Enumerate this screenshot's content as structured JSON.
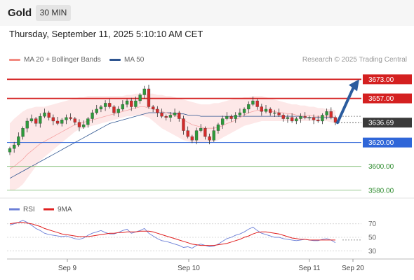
{
  "header": {
    "symbol": "Gold",
    "timeframe": "30 MIN"
  },
  "timestamp": "Thursday, September 11, 2025 5:10:10 AM CET",
  "legend": {
    "ma20": {
      "label": "MA 20 + Bollinger Bands",
      "color": "#f28b82"
    },
    "ma50": {
      "label": "MA 50",
      "color": "#2e5590"
    }
  },
  "credit": "Research © 2025 Trading Central",
  "rsi_legend": {
    "rsi": {
      "label": "RSI",
      "color": "#6b7fd7"
    },
    "ma9": {
      "label": "9MA",
      "color": "#e02020"
    }
  },
  "chart_data": {
    "type": "candlestick",
    "x_ticks": [
      "Sep 9",
      "Sep 10",
      "Sep 11",
      "Sep 20"
    ],
    "ylim": [
      3574,
      3682
    ],
    "current_price": {
      "value": 3636.69,
      "label": "3636.69"
    },
    "levels": [
      {
        "value": 3673.0,
        "label": "3673.00",
        "kind": "resistance"
      },
      {
        "value": 3657.0,
        "label": "3657.00",
        "kind": "resistance"
      },
      {
        "value": 3620.0,
        "label": "3620.00",
        "kind": "pivot"
      },
      {
        "value": 3600.0,
        "label": "3600.00",
        "kind": "support"
      },
      {
        "value": 3580.0,
        "label": "3580.00",
        "kind": "support"
      }
    ],
    "forecast_arrow": {
      "from": 3636.7,
      "to": 3673.0
    },
    "price_path": [
      3615,
      3618,
      3625,
      3632,
      3638,
      3640,
      3636,
      3642,
      3645,
      3641,
      3638,
      3636,
      3639,
      3641,
      3640,
      3637,
      3633,
      3635,
      3640,
      3645,
      3648,
      3650,
      3653,
      3650,
      3645,
      3648,
      3652,
      3655,
      3650,
      3655,
      3660,
      3665,
      3650,
      3648,
      3645,
      3642,
      3641,
      3643,
      3645,
      3640,
      3630,
      3625,
      3622,
      3630,
      3632,
      3625,
      3622,
      3630,
      3635,
      3640,
      3642,
      3640,
      3643,
      3645,
      3648,
      3652,
      3655,
      3650,
      3646,
      3648,
      3645,
      3645,
      3643,
      3640,
      3641,
      3638,
      3640,
      3642,
      3641,
      3641,
      3639,
      3638,
      3643,
      3646,
      3641,
      3637
    ],
    "ma20": [
      3598,
      3600,
      3603,
      3606,
      3610,
      3613,
      3616,
      3619,
      3621,
      3623,
      3625,
      3627,
      3629,
      3631,
      3633,
      3635,
      3636,
      3637,
      3638,
      3639,
      3640,
      3641,
      3642,
      3643,
      3644,
      3645,
      3646,
      3647,
      3648,
      3649,
      3650,
      3650,
      3649,
      3648,
      3647,
      3646,
      3645,
      3644,
      3643,
      3641,
      3639,
      3637,
      3635,
      3634,
      3633,
      3632,
      3632,
      3632,
      3633,
      3634,
      3636,
      3637,
      3639,
      3641,
      3643,
      3645,
      3646,
      3647,
      3647,
      3647,
      3646,
      3646,
      3645,
      3645,
      3644,
      3644,
      3643,
      3643,
      3643,
      3643,
      3642,
      3642,
      3642,
      3642,
      3642,
      3641
    ],
    "bb_upper": [
      3636,
      3640,
      3643,
      3646,
      3648,
      3649,
      3650,
      3650,
      3650,
      3651,
      3652,
      3653,
      3654,
      3655,
      3656,
      3657,
      3658,
      3658,
      3659,
      3659,
      3659,
      3659,
      3659,
      3659,
      3659,
      3659,
      3659,
      3660,
      3660,
      3661,
      3661,
      3661,
      3661,
      3661,
      3660,
      3660,
      3659,
      3659,
      3658,
      3657,
      3656,
      3655,
      3654,
      3653,
      3652,
      3652,
      3652,
      3653,
      3653,
      3654,
      3655,
      3656,
      3657,
      3657,
      3658,
      3658,
      3659,
      3659,
      3659,
      3658,
      3657,
      3656,
      3655,
      3654,
      3653,
      3652,
      3652,
      3651,
      3651,
      3650,
      3650,
      3649,
      3649,
      3648,
      3648,
      3647
    ],
    "bb_lower": [
      3580,
      3580,
      3582,
      3585,
      3590,
      3595,
      3600,
      3605,
      3608,
      3611,
      3614,
      3617,
      3620,
      3623,
      3626,
      3629,
      3631,
      3632,
      3633,
      3634,
      3635,
      3636,
      3637,
      3638,
      3639,
      3640,
      3641,
      3642,
      3642,
      3643,
      3643,
      3642,
      3641,
      3638,
      3635,
      3632,
      3630,
      3628,
      3626,
      3624,
      3622,
      3621,
      3620,
      3620,
      3620,
      3620,
      3620,
      3621,
      3622,
      3624,
      3626,
      3628,
      3630,
      3632,
      3634,
      3635,
      3636,
      3637,
      3638,
      3638,
      3638,
      3638,
      3638,
      3638,
      3638,
      3638,
      3638,
      3638,
      3638,
      3638,
      3638,
      3638,
      3638,
      3638,
      3637,
      3636
    ],
    "ma50": [
      3590,
      3592,
      3594,
      3596,
      3598,
      3600,
      3602,
      3604,
      3606,
      3608,
      3610,
      3612,
      3614,
      3616,
      3618,
      3620,
      3622,
      3624,
      3626,
      3628,
      3630,
      3632,
      3634,
      3636,
      3637,
      3638,
      3639,
      3640,
      3641,
      3642,
      3643,
      3644,
      3645,
      3645,
      3645,
      3645,
      3645,
      3645,
      3644,
      3644,
      3644,
      3643,
      3643,
      3643,
      3642,
      3642,
      3642,
      3642,
      3642,
      3642,
      3642,
      3642,
      3642,
      3642,
      3642,
      3642,
      3642,
      3642,
      3642,
      3642,
      3642,
      3642,
      3642,
      3642,
      3642,
      3642,
      3642,
      3642,
      3641,
      3641,
      3641,
      3641,
      3641,
      3641,
      3641,
      3641
    ],
    "rsi": {
      "ylim": [
        20,
        80
      ],
      "ticks": [
        "70",
        "50",
        "30"
      ],
      "rsi_values": [
        68,
        70,
        72,
        75,
        72,
        68,
        63,
        60,
        56,
        54,
        53,
        52,
        51,
        52,
        50,
        48,
        47,
        49,
        53,
        56,
        58,
        60,
        57,
        55,
        55,
        57,
        60,
        62,
        56,
        58,
        60,
        63,
        56,
        52,
        48,
        45,
        44,
        42,
        40,
        38,
        35,
        36,
        34,
        38,
        40,
        38,
        36,
        37,
        40,
        44,
        48,
        50,
        53,
        55,
        58,
        62,
        65,
        60,
        56,
        54,
        52,
        50,
        50,
        48,
        47,
        46,
        45,
        46,
        47,
        46,
        45,
        45,
        47,
        48,
        46,
        42
      ],
      "ma9_values": [
        70,
        71,
        72,
        72,
        71,
        70,
        68,
        66,
        63,
        61,
        59,
        57,
        55,
        54,
        53,
        52,
        51,
        51,
        51,
        52,
        53,
        54,
        55,
        56,
        56,
        57,
        57,
        58,
        58,
        58,
        59,
        59,
        59,
        58,
        56,
        54,
        52,
        50,
        48,
        46,
        44,
        42,
        40,
        39,
        38,
        38,
        38,
        38,
        39,
        40,
        41,
        43,
        45,
        47,
        50,
        52,
        55,
        57,
        58,
        58,
        57,
        56,
        55,
        53,
        51,
        49,
        48,
        47,
        47,
        46,
        46,
        46,
        46,
        46,
        46,
        46
      ]
    }
  }
}
